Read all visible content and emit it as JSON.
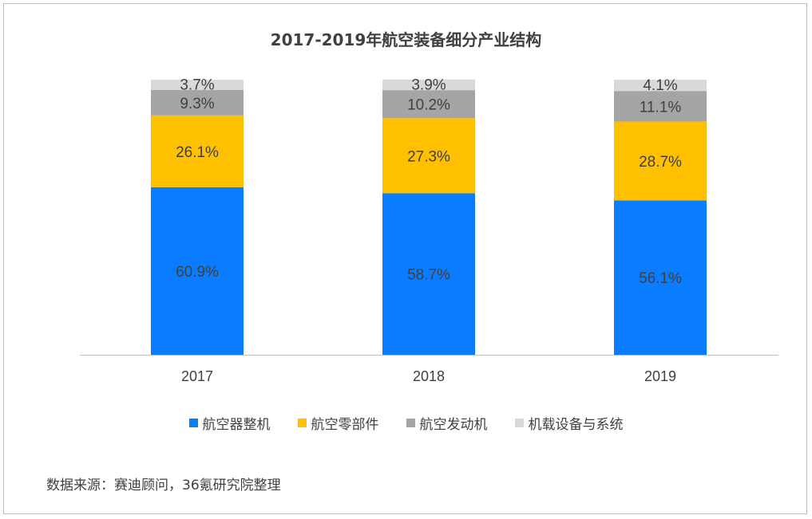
{
  "chart_data": {
    "type": "bar",
    "stacked": true,
    "title": "2017-2019年航空装备细分产业结构",
    "categories": [
      "2017",
      "2018",
      "2019"
    ],
    "series": [
      {
        "name": "航空器整机",
        "values": [
          60.9,
          58.7,
          56.1
        ],
        "color": "#0a7cff"
      },
      {
        "name": "航空零部件",
        "values": [
          26.1,
          27.3,
          28.7
        ],
        "color": "#ffc000"
      },
      {
        "name": "航空发动机",
        "values": [
          9.3,
          10.2,
          11.1
        ],
        "color": "#a5a5a5"
      },
      {
        "name": "机载设备与系统",
        "values": [
          3.7,
          3.9,
          4.1
        ],
        "color": "#d9d9d9"
      }
    ],
    "ylim": [
      0,
      100
    ],
    "grid": false,
    "legend": "bottom",
    "source": "数据来源：赛迪顾问，36氪研究院整理"
  }
}
